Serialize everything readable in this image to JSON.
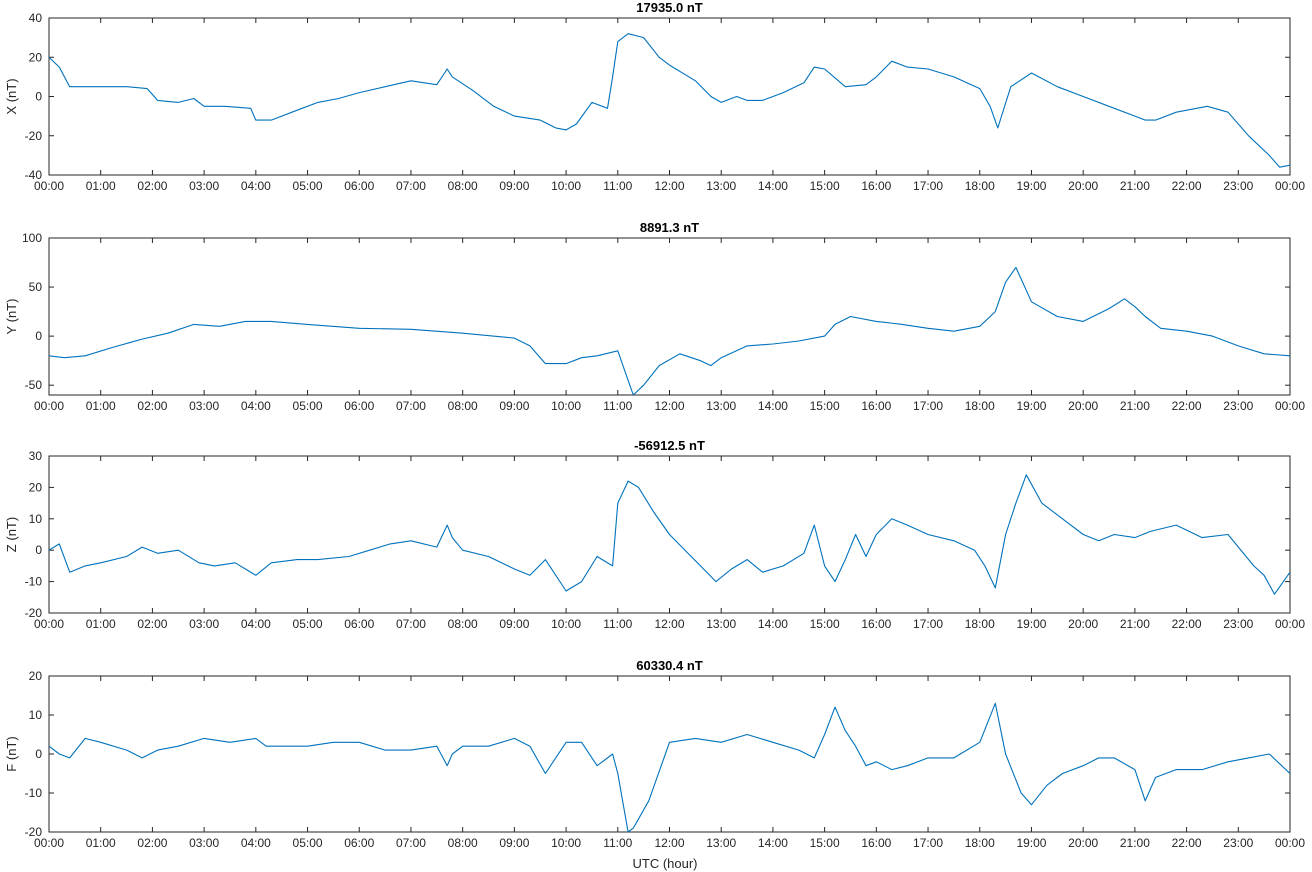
{
  "x_tick_labels": [
    "00:00",
    "01:00",
    "02:00",
    "03:00",
    "04:00",
    "05:00",
    "06:00",
    "07:00",
    "08:00",
    "09:00",
    "10:00",
    "11:00",
    "12:00",
    "13:00",
    "14:00",
    "15:00",
    "16:00",
    "17:00",
    "18:00",
    "19:00",
    "20:00",
    "21:00",
    "22:00",
    "23:00",
    "00:00"
  ],
  "xlabel": "UTC (hour)",
  "line_color": "#0072BD",
  "chart_data": [
    {
      "type": "line",
      "title": "17935.0 nT",
      "ylabel": "X (nT)",
      "xlim": [
        0,
        24
      ],
      "ylim": [
        -40,
        40
      ],
      "yticks": [
        -40,
        -20,
        0,
        20,
        40
      ],
      "x": [
        0,
        0.2,
        0.4,
        0.6,
        1.0,
        1.5,
        1.9,
        2.1,
        2.5,
        2.8,
        3.0,
        3.4,
        3.9,
        4.0,
        4.3,
        4.8,
        5.2,
        5.6,
        6.0,
        6.5,
        7.0,
        7.5,
        7.7,
        7.8,
        8.2,
        8.6,
        9.0,
        9.5,
        9.8,
        10.0,
        10.2,
        10.5,
        10.8,
        10.9,
        11.0,
        11.2,
        11.5,
        11.8,
        12.0,
        12.5,
        12.8,
        13.0,
        13.3,
        13.5,
        13.8,
        14.2,
        14.6,
        14.8,
        15.0,
        15.4,
        15.8,
        16.0,
        16.3,
        16.6,
        17.0,
        17.5,
        18.0,
        18.2,
        18.35,
        18.6,
        19.0,
        19.5,
        20.0,
        20.5,
        21.0,
        21.2,
        21.4,
        21.8,
        22.4,
        22.8,
        23.2,
        23.6,
        23.8,
        24.0
      ],
      "y": [
        20,
        15,
        5,
        5,
        5,
        5,
        4,
        -2,
        -3,
        -1,
        -5,
        -5,
        -6,
        -12,
        -12,
        -7,
        -3,
        -1,
        2,
        5,
        8,
        6,
        14,
        10,
        3,
        -5,
        -10,
        -12,
        -16,
        -17,
        -14,
        -3,
        -6,
        10,
        28,
        32,
        30,
        20,
        16,
        8,
        0,
        -3,
        0,
        -2,
        -2,
        2,
        7,
        15,
        14,
        5,
        6,
        10,
        18,
        15,
        14,
        10,
        4,
        -5,
        -16,
        5,
        12,
        5,
        0,
        -5,
        -10,
        -12,
        -12,
        -8,
        -5,
        -8,
        -20,
        -30,
        -36,
        -35
      ]
    },
    {
      "type": "line",
      "title": "8891.3 nT",
      "ylabel": "Y (nT)",
      "xlim": [
        0,
        24
      ],
      "ylim": [
        -60,
        100
      ],
      "yticks": [
        -50,
        0,
        50,
        100
      ],
      "x": [
        0,
        0.3,
        0.7,
        1.2,
        1.8,
        2.3,
        2.8,
        3.3,
        3.8,
        4.3,
        5.0,
        6.0,
        7.0,
        8.0,
        9.0,
        9.3,
        9.6,
        10.0,
        10.3,
        10.6,
        11.0,
        11.2,
        11.3,
        11.5,
        11.8,
        12.2,
        12.6,
        12.8,
        13.0,
        13.5,
        14.0,
        14.5,
        15.0,
        15.2,
        15.5,
        16.0,
        16.5,
        17.0,
        17.5,
        18.0,
        18.3,
        18.5,
        18.7,
        19.0,
        19.5,
        20.0,
        20.5,
        20.8,
        21.0,
        21.2,
        21.5,
        22.0,
        22.5,
        23.0,
        23.5,
        24.0
      ],
      "y": [
        -20,
        -22,
        -20,
        -12,
        -3,
        3,
        12,
        10,
        15,
        15,
        12,
        8,
        7,
        3,
        -2,
        -10,
        -28,
        -28,
        -22,
        -20,
        -15,
        -45,
        -60,
        -50,
        -30,
        -18,
        -25,
        -30,
        -22,
        -10,
        -8,
        -5,
        0,
        12,
        20,
        15,
        12,
        8,
        5,
        10,
        25,
        55,
        70,
        35,
        20,
        15,
        28,
        38,
        30,
        20,
        8,
        5,
        0,
        -10,
        -18,
        -20
      ]
    },
    {
      "type": "line",
      "title": "-56912.5 nT",
      "ylabel": "Z (nT)",
      "xlim": [
        0,
        24
      ],
      "ylim": [
        -20,
        30
      ],
      "yticks": [
        -20,
        -10,
        0,
        10,
        20,
        30
      ],
      "x": [
        0,
        0.2,
        0.4,
        0.7,
        1.0,
        1.5,
        1.8,
        2.1,
        2.5,
        2.9,
        3.2,
        3.6,
        4.0,
        4.3,
        4.8,
        5.2,
        5.8,
        6.2,
        6.6,
        7.0,
        7.5,
        7.7,
        7.8,
        8.0,
        8.5,
        9.0,
        9.3,
        9.6,
        10.0,
        10.3,
        10.6,
        10.9,
        11.0,
        11.2,
        11.4,
        11.7,
        12.0,
        12.3,
        12.6,
        12.9,
        13.2,
        13.5,
        13.8,
        14.2,
        14.6,
        14.8,
        15.0,
        15.2,
        15.4,
        15.6,
        15.8,
        16.0,
        16.3,
        16.6,
        17.0,
        17.5,
        17.9,
        18.1,
        18.3,
        18.5,
        18.7,
        18.9,
        19.2,
        19.6,
        20.0,
        20.3,
        20.6,
        21.0,
        21.3,
        21.8,
        22.3,
        22.8,
        23.3,
        23.5,
        23.7,
        24.0
      ],
      "y": [
        0,
        2,
        -7,
        -5,
        -4,
        -2,
        1,
        -1,
        0,
        -4,
        -5,
        -4,
        -8,
        -4,
        -3,
        -3,
        -2,
        0,
        2,
        3,
        1,
        8,
        4,
        0,
        -2,
        -6,
        -8,
        -3,
        -13,
        -10,
        -2,
        -5,
        15,
        22,
        20,
        12,
        5,
        0,
        -5,
        -10,
        -6,
        -3,
        -7,
        -5,
        -1,
        8,
        -5,
        -10,
        -3,
        5,
        -2,
        5,
        10,
        8,
        5,
        3,
        0,
        -5,
        -12,
        5,
        15,
        24,
        15,
        10,
        5,
        3,
        5,
        4,
        6,
        8,
        4,
        5,
        -5,
        -8,
        -14,
        -7
      ]
    },
    {
      "type": "line",
      "title": "60330.4 nT",
      "ylabel": "F (nT)",
      "xlim": [
        0,
        24
      ],
      "ylim": [
        -20,
        20
      ],
      "yticks": [
        -20,
        -10,
        0,
        10,
        20
      ],
      "x": [
        0,
        0.2,
        0.4,
        0.7,
        1.0,
        1.5,
        1.8,
        2.1,
        2.5,
        3.0,
        3.5,
        4.0,
        4.2,
        4.6,
        5.0,
        5.5,
        6.0,
        6.5,
        7.0,
        7.5,
        7.7,
        7.8,
        8.0,
        8.5,
        9.0,
        9.3,
        9.6,
        10.0,
        10.3,
        10.6,
        10.9,
        11.0,
        11.2,
        11.3,
        11.6,
        12.0,
        12.5,
        13.0,
        13.5,
        14.0,
        14.5,
        14.8,
        15.0,
        15.2,
        15.4,
        15.6,
        15.8,
        16.0,
        16.3,
        16.6,
        17.0,
        17.5,
        18.0,
        18.3,
        18.5,
        18.8,
        19.0,
        19.3,
        19.6,
        20.0,
        20.3,
        20.6,
        21.0,
        21.2,
        21.4,
        21.8,
        22.3,
        22.8,
        23.2,
        23.6,
        24.0
      ],
      "y": [
        2,
        0,
        -1,
        4,
        3,
        1,
        -1,
        1,
        2,
        4,
        3,
        4,
        2,
        2,
        2,
        3,
        3,
        1,
        1,
        2,
        -3,
        0,
        2,
        2,
        4,
        2,
        -5,
        3,
        3,
        -3,
        0,
        -5,
        -20,
        -19,
        -12,
        3,
        4,
        3,
        5,
        3,
        1,
        -1,
        5,
        12,
        6,
        2,
        -3,
        -2,
        -4,
        -3,
        -1,
        -1,
        3,
        13,
        0,
        -10,
        -13,
        -8,
        -5,
        -3,
        -1,
        -1,
        -4,
        -12,
        -6,
        -4,
        -4,
        -2,
        -1,
        0,
        -5
      ]
    }
  ]
}
